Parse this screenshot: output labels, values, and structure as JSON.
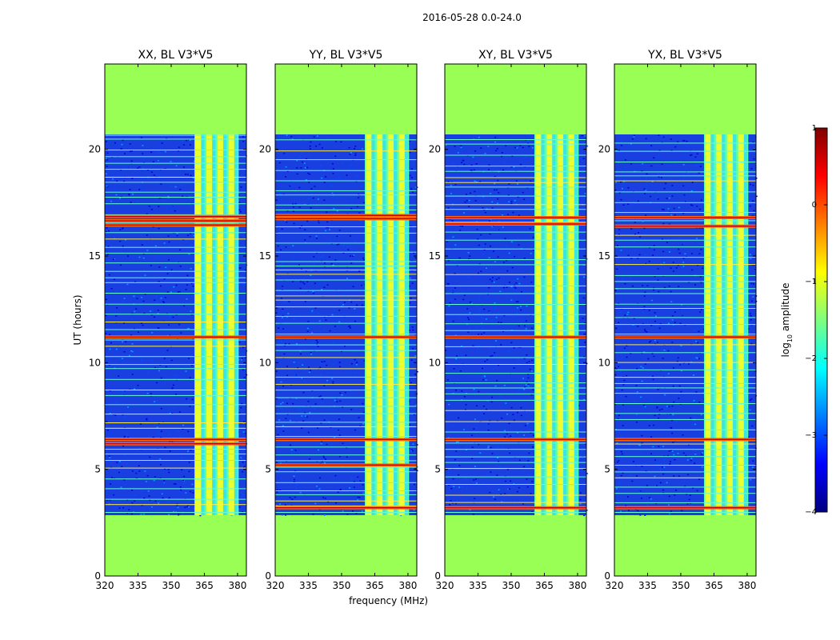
{
  "suptitle": "2016-05-28 0.0-24.0",
  "colors": {
    "background": "#ffffff",
    "nodata": "#99ff55",
    "jet": [
      "#00007f",
      "#0000ff",
      "#007fff",
      "#00ffff",
      "#7fff7f",
      "#ffff00",
      "#ff7f00",
      "#ff0000",
      "#7f0000"
    ]
  },
  "chart_data": [
    {
      "type": "heatmap",
      "title": "XX, BL V3*V5",
      "xlabel": "",
      "ylabel": "UT (hours)",
      "xlim": [
        320,
        384
      ],
      "ylim": [
        0,
        24
      ],
      "xticks": [
        320,
        335,
        350,
        365,
        380
      ],
      "yticks": [
        0,
        5,
        10,
        15,
        20
      ],
      "data_time_range": [
        2.85,
        20.7
      ],
      "rfi_band_mhz": [
        360.5,
        380.5
      ],
      "strong_rfi_times": [
        16.45,
        16.65,
        16.85,
        11.2,
        6.4,
        6.2
      ]
    },
    {
      "type": "heatmap",
      "title": "YY, BL V3*V5",
      "xlabel": "frequency (MHz)",
      "ylabel": "",
      "xlim": [
        320,
        384
      ],
      "ylim": [
        0,
        24
      ],
      "xticks": [
        320,
        335,
        350,
        365,
        380
      ],
      "yticks": [
        0,
        5,
        10,
        15,
        20
      ],
      "data_time_range": [
        2.85,
        20.7
      ],
      "rfi_band_mhz": [
        360.5,
        380.5
      ],
      "strong_rfi_times": [
        16.75,
        16.9,
        11.2,
        6.4,
        5.2,
        3.2
      ]
    },
    {
      "type": "heatmap",
      "title": "XY, BL V3*V5",
      "xlabel": "",
      "ylabel": "",
      "xlim": [
        320,
        384
      ],
      "ylim": [
        0,
        24
      ],
      "xticks": [
        320,
        335,
        350,
        365,
        380
      ],
      "yticks": [
        0,
        5,
        10,
        15,
        20
      ],
      "data_time_range": [
        2.85,
        20.7
      ],
      "rfi_band_mhz": [
        360.5,
        380.5
      ],
      "strong_rfi_times": [
        16.8,
        16.5,
        11.2,
        6.4,
        3.2
      ]
    },
    {
      "type": "heatmap",
      "title": "YX, BL V3*V5",
      "xlabel": "",
      "ylabel": "",
      "xlim": [
        320,
        384
      ],
      "ylim": [
        0,
        24
      ],
      "xticks": [
        320,
        335,
        350,
        365,
        380
      ],
      "yticks": [
        0,
        5,
        10,
        15,
        20
      ],
      "data_time_range": [
        2.85,
        20.7
      ],
      "rfi_band_mhz": [
        360.5,
        380.5
      ],
      "strong_rfi_times": [
        16.8,
        16.4,
        11.2,
        6.4,
        3.2
      ]
    }
  ],
  "colorbar": {
    "label": "log",
    "label_sub": "10",
    "label_tail": " amplitude",
    "range": [
      -4,
      1
    ],
    "ticks": [
      1,
      0,
      -1,
      -2,
      -3,
      -4
    ],
    "tick_labels": [
      "1",
      "0",
      "−1",
      "−2",
      "−3",
      "−4"
    ]
  }
}
